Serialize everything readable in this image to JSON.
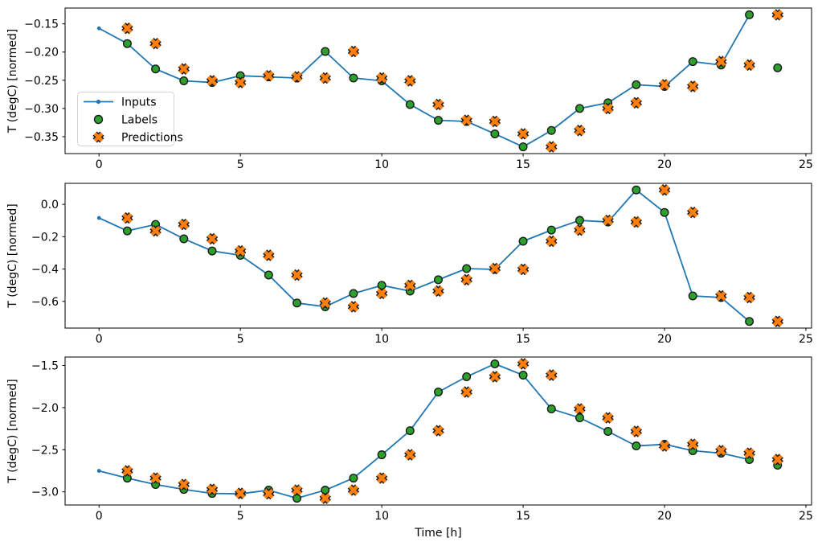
{
  "figure": {
    "background": "#ffffff",
    "xlabel": "Time [h]",
    "ylabel": "T (degC) [normed]"
  },
  "colors": {
    "inputs_line": "#1f77b4",
    "labels_fill": "#2ca02c",
    "predictions_fill": "#ff7f0e",
    "marker_edge": "#1a1a1a",
    "axes_spine": "#000000",
    "legend_border": "#d4d4d4"
  },
  "legend": {
    "entries": [
      "Inputs",
      "Labels",
      "Predictions"
    ]
  },
  "chart_data": [
    {
      "type": "line",
      "title": "",
      "xlabel": "",
      "ylabel": "T (degC) [normed]",
      "xlim": [
        -1.2,
        25.2
      ],
      "ylim": [
        -0.38,
        -0.122
      ],
      "grid": false,
      "xticks": [
        0,
        5,
        10,
        15,
        20,
        25
      ],
      "xtick_labels": [
        "0",
        "5",
        "10",
        "15",
        "20",
        "25"
      ],
      "yticks": [
        -0.15,
        -0.2,
        -0.25,
        -0.3,
        -0.35
      ],
      "ytick_labels": [
        "−0.15",
        "−0.20",
        "−0.25",
        "−0.30",
        "−0.35"
      ],
      "legend_visible": true,
      "series": [
        {
          "name": "Inputs",
          "kind": "line",
          "marker": "dot",
          "color": "#1f77b4",
          "x": [
            0,
            1,
            2,
            3,
            4,
            5,
            6,
            7,
            8,
            9,
            10,
            11,
            12,
            13,
            14,
            15,
            16,
            17,
            18,
            19,
            20,
            21,
            22,
            23
          ],
          "y": [
            -0.158,
            -0.185,
            -0.23,
            -0.251,
            -0.254,
            -0.242,
            -0.244,
            -0.246,
            -0.199,
            -0.246,
            -0.251,
            -0.293,
            -0.321,
            -0.323,
            -0.345,
            -0.368,
            -0.339,
            -0.3,
            -0.29,
            -0.258,
            -0.261,
            -0.217,
            -0.223,
            -0.134
          ]
        },
        {
          "name": "Labels",
          "kind": "scatter",
          "marker": "circle",
          "color": "#2ca02c",
          "edge": "#1a1a1a",
          "x": [
            1,
            2,
            3,
            4,
            5,
            6,
            7,
            8,
            9,
            10,
            11,
            12,
            13,
            14,
            15,
            16,
            17,
            18,
            19,
            20,
            21,
            22,
            23,
            24
          ],
          "y": [
            -0.185,
            -0.23,
            -0.251,
            -0.254,
            -0.242,
            -0.244,
            -0.246,
            -0.199,
            -0.246,
            -0.251,
            -0.293,
            -0.321,
            -0.323,
            -0.345,
            -0.368,
            -0.339,
            -0.3,
            -0.29,
            -0.258,
            -0.261,
            -0.217,
            -0.223,
            -0.134,
            -0.228
          ]
        },
        {
          "name": "Predictions",
          "kind": "scatter",
          "marker": "X",
          "color": "#ff7f0e",
          "edge": "#1a1a1a",
          "x": [
            1,
            2,
            3,
            4,
            5,
            6,
            7,
            8,
            9,
            10,
            11,
            12,
            13,
            14,
            15,
            16,
            17,
            18,
            19,
            20,
            21,
            22,
            23,
            24
          ],
          "y": [
            -0.158,
            -0.185,
            -0.23,
            -0.251,
            -0.254,
            -0.242,
            -0.244,
            -0.246,
            -0.199,
            -0.246,
            -0.251,
            -0.293,
            -0.321,
            -0.323,
            -0.345,
            -0.368,
            -0.339,
            -0.3,
            -0.29,
            -0.258,
            -0.261,
            -0.217,
            -0.223,
            -0.134
          ]
        }
      ]
    },
    {
      "type": "line",
      "title": "",
      "xlabel": "",
      "ylabel": "T (degC) [normed]",
      "xlim": [
        -1.2,
        25.2
      ],
      "ylim": [
        -0.765,
        0.13
      ],
      "grid": false,
      "xticks": [
        0,
        5,
        10,
        15,
        20,
        25
      ],
      "xtick_labels": [
        "0",
        "5",
        "10",
        "15",
        "20",
        "25"
      ],
      "yticks": [
        0.0,
        -0.2,
        -0.4,
        -0.6
      ],
      "ytick_labels": [
        "0.0",
        "−0.2",
        "−0.4",
        "−0.6"
      ],
      "legend_visible": false,
      "series": [
        {
          "name": "Inputs",
          "kind": "line",
          "marker": "dot",
          "color": "#1f77b4",
          "x": [
            0,
            1,
            2,
            3,
            4,
            5,
            6,
            7,
            8,
            9,
            10,
            11,
            12,
            13,
            14,
            15,
            16,
            17,
            18,
            19,
            20,
            21,
            22,
            23
          ],
          "y": [
            -0.084,
            -0.164,
            -0.124,
            -0.213,
            -0.288,
            -0.315,
            -0.437,
            -0.61,
            -0.633,
            -0.551,
            -0.501,
            -0.536,
            -0.466,
            -0.397,
            -0.402,
            -0.228,
            -0.159,
            -0.099,
            -0.109,
            0.089,
            -0.05,
            -0.566,
            -0.576,
            -0.724
          ]
        },
        {
          "name": "Labels",
          "kind": "scatter",
          "marker": "circle",
          "color": "#2ca02c",
          "edge": "#1a1a1a",
          "x": [
            1,
            2,
            3,
            4,
            5,
            6,
            7,
            8,
            9,
            10,
            11,
            12,
            13,
            14,
            15,
            16,
            17,
            18,
            19,
            20,
            21,
            22,
            23,
            24
          ],
          "y": [
            -0.164,
            -0.124,
            -0.213,
            -0.288,
            -0.315,
            -0.437,
            -0.61,
            -0.633,
            -0.551,
            -0.501,
            -0.536,
            -0.466,
            -0.397,
            -0.402,
            -0.228,
            -0.159,
            -0.099,
            -0.109,
            0.089,
            -0.05,
            -0.566,
            -0.576,
            -0.724,
            -0.724
          ]
        },
        {
          "name": "Predictions",
          "kind": "scatter",
          "marker": "X",
          "color": "#ff7f0e",
          "edge": "#1a1a1a",
          "x": [
            1,
            2,
            3,
            4,
            5,
            6,
            7,
            8,
            9,
            10,
            11,
            12,
            13,
            14,
            15,
            16,
            17,
            18,
            19,
            20,
            21,
            22,
            23,
            24
          ],
          "y": [
            -0.084,
            -0.164,
            -0.124,
            -0.213,
            -0.288,
            -0.315,
            -0.437,
            -0.61,
            -0.633,
            -0.551,
            -0.501,
            -0.536,
            -0.466,
            -0.397,
            -0.402,
            -0.228,
            -0.159,
            -0.099,
            -0.109,
            0.089,
            -0.05,
            -0.566,
            -0.576,
            -0.724
          ]
        }
      ]
    },
    {
      "type": "line",
      "title": "",
      "xlabel": "Time [h]",
      "ylabel": "T (degC) [normed]",
      "xlim": [
        -1.2,
        25.2
      ],
      "ylim": [
        -3.156,
        -1.4
      ],
      "grid": false,
      "xticks": [
        0,
        5,
        10,
        15,
        20,
        25
      ],
      "xtick_labels": [
        "0",
        "5",
        "10",
        "15",
        "20",
        "25"
      ],
      "yticks": [
        -1.5,
        -2.0,
        -2.5,
        -3.0
      ],
      "ytick_labels": [
        "−1.5",
        "−2.0",
        "−2.5",
        "−3.0"
      ],
      "legend_visible": false,
      "series": [
        {
          "name": "Inputs",
          "kind": "line",
          "marker": "dot",
          "color": "#1f77b4",
          "x": [
            0,
            1,
            2,
            3,
            4,
            5,
            6,
            7,
            8,
            9,
            10,
            11,
            12,
            13,
            14,
            15,
            16,
            17,
            18,
            19,
            20,
            21,
            22,
            23
          ],
          "y": [
            -2.751,
            -2.837,
            -2.913,
            -2.971,
            -3.019,
            -3.023,
            -2.98,
            -3.076,
            -2.98,
            -2.837,
            -2.56,
            -2.274,
            -1.815,
            -1.634,
            -1.481,
            -1.615,
            -2.016,
            -2.121,
            -2.283,
            -2.455,
            -2.436,
            -2.512,
            -2.541,
            -2.617
          ]
        },
        {
          "name": "Labels",
          "kind": "scatter",
          "marker": "circle",
          "color": "#2ca02c",
          "edge": "#1a1a1a",
          "x": [
            1,
            2,
            3,
            4,
            5,
            6,
            7,
            8,
            9,
            10,
            11,
            12,
            13,
            14,
            15,
            16,
            17,
            18,
            19,
            20,
            21,
            22,
            23,
            24
          ],
          "y": [
            -2.837,
            -2.913,
            -2.971,
            -3.019,
            -3.023,
            -2.98,
            -3.076,
            -2.98,
            -2.837,
            -2.56,
            -2.274,
            -1.815,
            -1.634,
            -1.481,
            -1.615,
            -2.016,
            -2.121,
            -2.283,
            -2.455,
            -2.436,
            -2.512,
            -2.541,
            -2.617,
            -2.684
          ]
        },
        {
          "name": "Predictions",
          "kind": "scatter",
          "marker": "X",
          "color": "#ff7f0e",
          "edge": "#1a1a1a",
          "x": [
            1,
            2,
            3,
            4,
            5,
            6,
            7,
            8,
            9,
            10,
            11,
            12,
            13,
            14,
            15,
            16,
            17,
            18,
            19,
            20,
            21,
            22,
            23,
            24
          ],
          "y": [
            -2.751,
            -2.837,
            -2.913,
            -2.971,
            -3.019,
            -3.023,
            -2.98,
            -3.076,
            -2.98,
            -2.837,
            -2.56,
            -2.274,
            -1.815,
            -1.634,
            -1.481,
            -1.615,
            -2.016,
            -2.121,
            -2.283,
            -2.455,
            -2.436,
            -2.512,
            -2.541,
            -2.617
          ]
        }
      ]
    }
  ]
}
